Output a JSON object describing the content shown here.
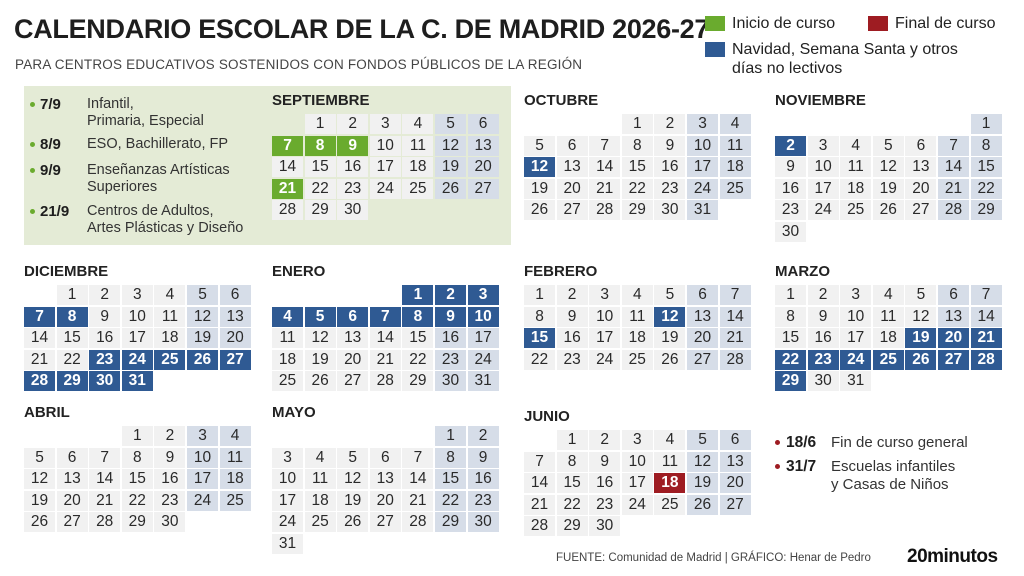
{
  "title": "CALENDARIO ESCOLAR DE LA C. DE MADRID 2026-27",
  "subtitle": "PARA CENTROS EDUCATIVOS SOSTENIDOS CON FONDOS PÚBLICOS DE LA REGIÓN",
  "colors": {
    "start": "#6aab2e",
    "end": "#9e1c22",
    "holiday": "#2f5a93",
    "weekend": "#d6dde8",
    "workday": "#f1f1f1",
    "start_box": "#e4ebd6"
  },
  "legend": {
    "start": "Inicio de curso",
    "end": "Final de curso",
    "holiday_line1": "Navidad,  Semana Santa y otros",
    "holiday_line2": "días no lectivos"
  },
  "course_start": [
    {
      "date": "7/9",
      "line1": "Infantil,",
      "line2": "Primaria, Especial"
    },
    {
      "date": "8/9",
      "line1": "ESO, Bachillerato, FP",
      "line2": ""
    },
    {
      "date": "9/9",
      "line1": "Enseñanzas Artísticas",
      "line2": "Superiores"
    },
    {
      "date": "21/9",
      "line1": "Centros de Adultos,",
      "line2": "Artes Plásticas y Diseño"
    }
  ],
  "course_end": [
    {
      "date": "18/6",
      "line1": "Fin de curso general",
      "line2": ""
    },
    {
      "date": "31/7",
      "line1": "Escuelas infantiles",
      "line2": "y Casas de Niños"
    }
  ],
  "months": [
    {
      "name": "SEPTIEMBRE",
      "offset": 1,
      "days": 30,
      "weekends": [
        5,
        6,
        12,
        13,
        19,
        20,
        26,
        27
      ],
      "holidays": [],
      "starts": [
        7,
        8,
        9,
        21
      ],
      "ends": []
    },
    {
      "name": "OCTUBRE",
      "offset": 3,
      "days": 31,
      "weekends": [
        3,
        4,
        10,
        11,
        17,
        18,
        24,
        25,
        31
      ],
      "holidays": [
        12
      ],
      "starts": [],
      "ends": []
    },
    {
      "name": "NOVIEMBRE",
      "offset": 6,
      "days": 30,
      "weekends": [
        1,
        7,
        8,
        14,
        15,
        21,
        22,
        28,
        29
      ],
      "holidays": [
        2
      ],
      "starts": [],
      "ends": []
    },
    {
      "name": "DICIEMBRE",
      "offset": 1,
      "days": 31,
      "weekends": [
        5,
        6,
        12,
        13,
        19,
        20
      ],
      "holidays": [
        7,
        8,
        23,
        24,
        25,
        26,
        27,
        28,
        29,
        30,
        31
      ],
      "starts": [],
      "ends": []
    },
    {
      "name": "ENERO",
      "offset": 4,
      "days": 31,
      "weekends": [
        16,
        17,
        23,
        24,
        30,
        31
      ],
      "holidays": [
        1,
        2,
        3,
        4,
        5,
        6,
        7,
        8,
        9,
        10
      ],
      "starts": [],
      "ends": []
    },
    {
      "name": "FEBRERO",
      "offset": 0,
      "days": 28,
      "weekends": [
        6,
        7,
        13,
        14,
        20,
        21,
        27,
        28
      ],
      "holidays": [
        12,
        15
      ],
      "starts": [],
      "ends": []
    },
    {
      "name": "MARZO",
      "offset": 0,
      "days": 31,
      "weekends": [
        6,
        7,
        13,
        14
      ],
      "holidays": [
        19,
        20,
        21,
        22,
        23,
        24,
        25,
        26,
        27,
        28,
        29
      ],
      "starts": [],
      "ends": []
    },
    {
      "name": "ABRIL",
      "offset": 3,
      "days": 30,
      "weekends": [
        3,
        4,
        10,
        11,
        17,
        18,
        24,
        25
      ],
      "holidays": [],
      "starts": [],
      "ends": []
    },
    {
      "name": "MAYO",
      "offset": 5,
      "days": 31,
      "weekends": [
        1,
        2,
        8,
        9,
        15,
        16,
        22,
        23,
        29,
        30
      ],
      "holidays": [],
      "starts": [],
      "ends": []
    },
    {
      "name": "JUNIO",
      "offset": 1,
      "days": 30,
      "weekends": [
        5,
        6,
        12,
        13,
        19,
        20,
        26,
        27
      ],
      "holidays": [],
      "starts": [],
      "ends": [
        18
      ]
    }
  ],
  "footer": "FUENTE: Comunidad de Madrid  |  GRÁFICO: Henar de Pedro",
  "logo": "20minutos"
}
